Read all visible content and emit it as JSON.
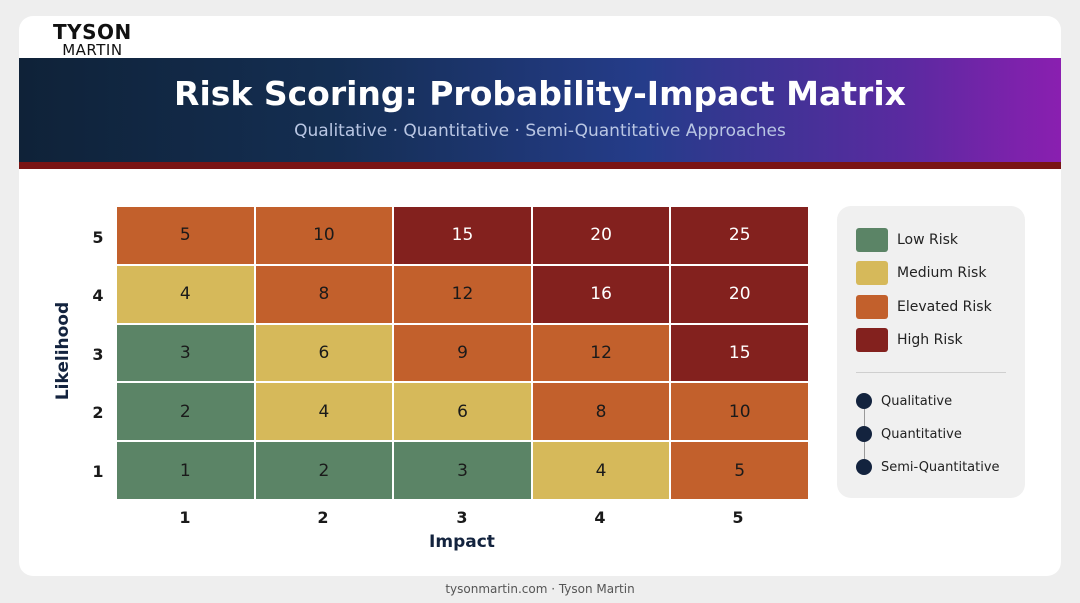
{
  "logo": {
    "line1": "TYSON",
    "line2": "MARTIN"
  },
  "header": {
    "title": "Risk Scoring: Probability-Impact Matrix",
    "subtitle": "Qualitative · Quantitative · Semi-Quantitative Approaches"
  },
  "colors": {
    "low": "#5b8466",
    "medium": "#d6b95a",
    "elevated": "#c2602c",
    "high": "#83211e"
  },
  "matrix": {
    "x_label": "Impact",
    "y_label": "Likelihood",
    "x_ticks": [
      "1",
      "2",
      "3",
      "4",
      "5"
    ],
    "y_ticks": [
      "5",
      "4",
      "3",
      "2",
      "1"
    ],
    "rows": [
      {
        "likelihood": "5",
        "cells": [
          {
            "value": "5",
            "level": "elevated"
          },
          {
            "value": "10",
            "level": "elevated"
          },
          {
            "value": "15",
            "level": "high"
          },
          {
            "value": "20",
            "level": "high"
          },
          {
            "value": "25",
            "level": "high"
          }
        ]
      },
      {
        "likelihood": "4",
        "cells": [
          {
            "value": "4",
            "level": "medium"
          },
          {
            "value": "8",
            "level": "elevated"
          },
          {
            "value": "12",
            "level": "elevated"
          },
          {
            "value": "16",
            "level": "high"
          },
          {
            "value": "20",
            "level": "high"
          }
        ]
      },
      {
        "likelihood": "3",
        "cells": [
          {
            "value": "3",
            "level": "low"
          },
          {
            "value": "6",
            "level": "medium"
          },
          {
            "value": "9",
            "level": "elevated"
          },
          {
            "value": "12",
            "level": "elevated"
          },
          {
            "value": "15",
            "level": "high"
          }
        ]
      },
      {
        "likelihood": "2",
        "cells": [
          {
            "value": "2",
            "level": "low"
          },
          {
            "value": "4",
            "level": "medium"
          },
          {
            "value": "6",
            "level": "medium"
          },
          {
            "value": "8",
            "level": "elevated"
          },
          {
            "value": "10",
            "level": "elevated"
          }
        ]
      },
      {
        "likelihood": "1",
        "cells": [
          {
            "value": "1",
            "level": "low"
          },
          {
            "value": "2",
            "level": "low"
          },
          {
            "value": "3",
            "level": "low"
          },
          {
            "value": "4",
            "level": "medium"
          },
          {
            "value": "5",
            "level": "elevated"
          }
        ]
      }
    ]
  },
  "legend": {
    "items": [
      {
        "label": "Low Risk",
        "level": "low"
      },
      {
        "label": "Medium Risk",
        "level": "medium"
      },
      {
        "label": "Elevated Risk",
        "level": "elevated"
      },
      {
        "label": "High Risk",
        "level": "high"
      }
    ],
    "approaches": [
      "Qualitative",
      "Quantitative",
      "Semi-Quantitative"
    ]
  },
  "footer": {
    "text": "tysonmartin.com · Tyson Martin"
  }
}
